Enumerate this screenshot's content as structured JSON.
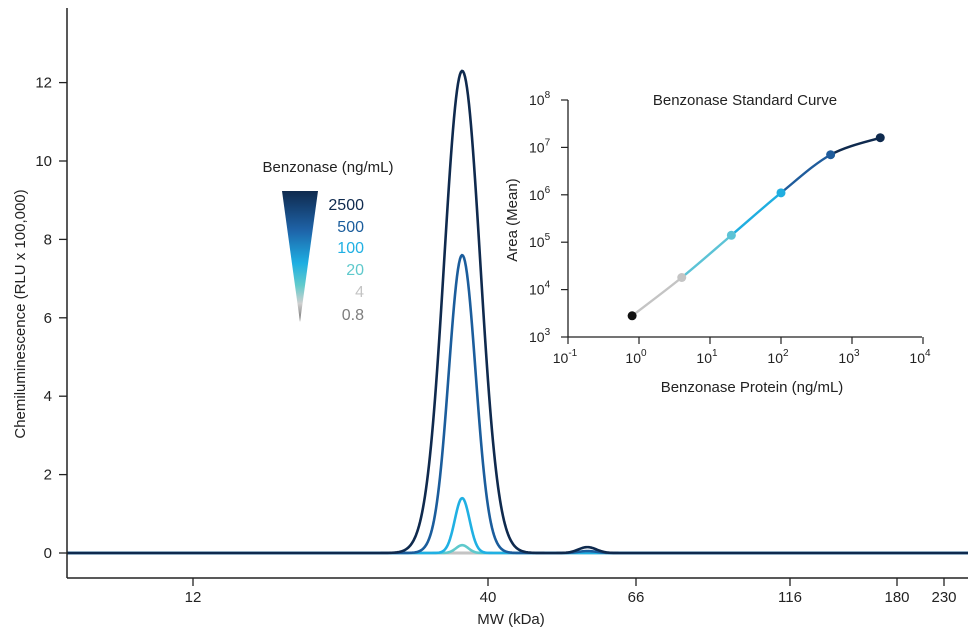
{
  "chart_data": [
    {
      "type": "line",
      "title": "",
      "xlabel": "MW (kDa)",
      "ylabel": "Chemiluminescence (RLU x 100,000)",
      "x_ticks": [
        "12",
        "40",
        "66",
        "116",
        "180",
        "230"
      ],
      "y_ticks": [
        "0",
        "2",
        "4",
        "6",
        "8",
        "10",
        "12"
      ],
      "ylim": [
        0,
        13
      ],
      "grid": false,
      "legend": {
        "title": "Benzonase (ng/mL)",
        "placement": "center-left",
        "entries": [
          "2500",
          "500",
          "100",
          "20",
          "4",
          "0.8"
        ]
      },
      "peaks": {
        "main_center_kda": 36,
        "secondary_center_kda": 56
      },
      "series": [
        {
          "name": "2500",
          "color": "#0f2a4e",
          "peak_height": 12.3,
          "secondary_peak_height": 0.15
        },
        {
          "name": "500",
          "color": "#1b5d9c",
          "peak_height": 7.6,
          "secondary_peak_height": 0.05
        },
        {
          "name": "100",
          "color": "#20b0e3",
          "peak_height": 1.4,
          "secondary_peak_height": 0
        },
        {
          "name": "20",
          "color": "#5fc9cc",
          "peak_height": 0.2,
          "secondary_peak_height": 0
        },
        {
          "name": "4",
          "color": "#c4c4c4",
          "peak_height": 0,
          "secondary_peak_height": 0
        },
        {
          "name": "0.8",
          "color": "#7d7d7d",
          "peak_height": 0,
          "secondary_peak_height": 0
        }
      ]
    },
    {
      "type": "line",
      "title": "Benzonase Standard Curve",
      "xlabel": "Benzonase Protein (ng/mL)",
      "ylabel": "Area (Mean)",
      "x_scale": "log",
      "y_scale": "log",
      "x_tick_exponents": [
        -1,
        0,
        1,
        2,
        3,
        4
      ],
      "y_tick_exponents": [
        3,
        4,
        5,
        6,
        7,
        8
      ],
      "x": [
        0.8,
        4,
        20,
        100,
        500,
        2500
      ],
      "y": [
        2800,
        18000,
        140000,
        1100000,
        7000000,
        16000000
      ],
      "point_colors": [
        "#111111",
        "#c4c4c4",
        "#5cc3d6",
        "#20aee0",
        "#1f5c9c",
        "#0f2a4e"
      ]
    }
  ]
}
